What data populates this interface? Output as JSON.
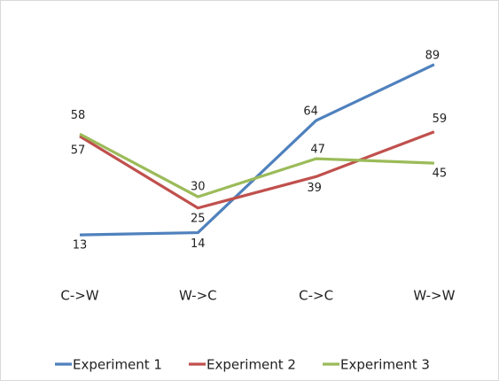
{
  "chart_data": {
    "type": "line",
    "categories": [
      "C->W",
      "W->C",
      "C->C",
      "W->W"
    ],
    "series": [
      {
        "name": "Experiment 1",
        "color": "#4f81bd",
        "values": [
          13,
          14,
          64,
          89
        ]
      },
      {
        "name": "Experiment 2",
        "color": "#c0504d",
        "values": [
          57,
          25,
          39,
          59
        ]
      },
      {
        "name": "Experiment 3",
        "color": "#9bbb59",
        "values": [
          58,
          30,
          47,
          45
        ]
      }
    ],
    "ylim": [
      0,
      100
    ],
    "legend": "bottom"
  }
}
